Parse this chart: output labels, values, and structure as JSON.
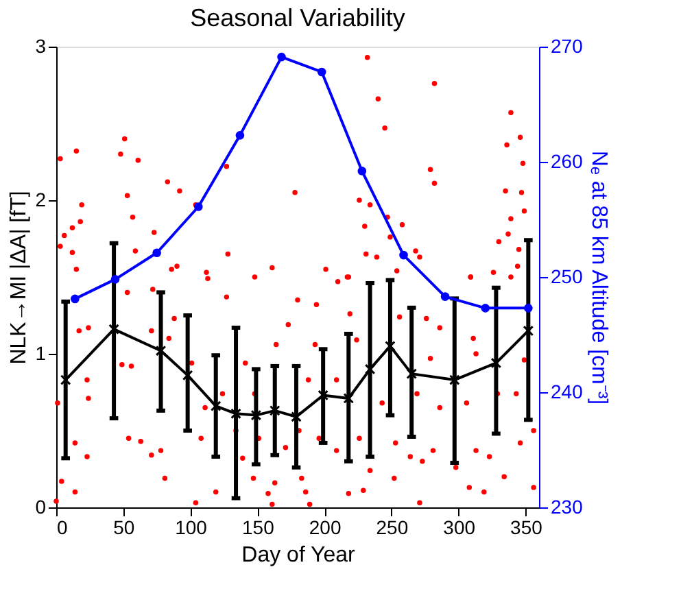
{
  "chart_data": {
    "type": "scatter",
    "title": "Seasonal Variability",
    "xlabel": "Day of Year",
    "ylabel": "NLK→MI |ΔA| [fT]",
    "y2label": "Nₑ at 85 km Altitude [cm⁻³]",
    "xlim": [
      0,
      360
    ],
    "xticks": [
      0,
      50,
      100,
      150,
      200,
      250,
      300,
      350
    ],
    "ylim": [
      0,
      3
    ],
    "yticks": [
      0,
      1,
      2,
      3
    ],
    "y2lim": [
      230,
      270
    ],
    "y2ticks": [
      230,
      240,
      250,
      260,
      270
    ],
    "grid": false,
    "series": [
      {
        "color": "#ff0000",
        "marker": "circle",
        "x": [
          3,
          15,
          51,
          48,
          61,
          127,
          83,
          92,
          53,
          19,
          57,
          6,
          12,
          18,
          73,
          3,
          12,
          59,
          128,
          15,
          86,
          90,
          112,
          161,
          178,
          104,
          232,
          282,
          240,
          245,
          339,
          346,
          336,
          348,
          279,
          282,
          226,
          234,
          335,
          347,
          349,
          339,
          258,
          230,
          247,
          330,
          337,
          249,
          231,
          239,
          268,
          271,
          345,
          344,
          201,
          217,
          309,
          326,
          113,
          148,
          127,
          53,
          72,
          24,
          17,
          49,
          56,
          23,
          1,
          24,
          54,
          63,
          71,
          78,
          14,
          23,
          4,
          14,
          0,
          81,
          104,
          119,
          158,
          163,
          161,
          147,
          139,
          171,
          108,
          111,
          101,
          141,
          164,
          173,
          124,
          148,
          134,
          151,
          84,
          71,
          88,
          180,
          210,
          218,
          254,
          309,
          339,
          194,
          219,
          256,
          276,
          286,
          311,
          349,
          193,
          224,
          279,
          313,
          329,
          343,
          286,
          306,
          188,
          209,
          243,
          269,
          181,
          196,
          209,
          226,
          253,
          273,
          281,
          313,
          346,
          356,
          323,
          183,
          186,
          189,
          218,
          229,
          252,
          271,
          308,
          319,
          334,
          356,
          298,
          264,
          234
        ],
        "values": [
          2.27,
          2.32,
          2.4,
          2.3,
          2.26,
          2.22,
          2.12,
          2.06,
          2.03,
          1.97,
          1.89,
          1.77,
          1.82,
          1.86,
          1.79,
          1.7,
          1.66,
          1.67,
          1.65,
          1.55,
          1.55,
          1.57,
          1.53,
          1.56,
          2.05,
          1.97,
          2.93,
          2.76,
          2.66,
          2.47,
          2.57,
          2.41,
          2.36,
          2.24,
          2.2,
          2.11,
          2.0,
          1.97,
          2.06,
          2.05,
          1.93,
          1.88,
          1.84,
          1.83,
          1.89,
          1.73,
          1.78,
          1.76,
          1.65,
          1.63,
          1.67,
          1.63,
          1.68,
          1.57,
          1.55,
          1.5,
          1.5,
          1.53,
          1.49,
          1.5,
          1.37,
          1.4,
          1.42,
          1.17,
          1.15,
          0.93,
          0.92,
          0.83,
          0.68,
          0.71,
          0.45,
          0.43,
          0.34,
          0.37,
          0.42,
          0.33,
          0.17,
          0.1,
          0.04,
          0.19,
          0.03,
          0.1,
          0.09,
          0.16,
          0.02,
          0.19,
          0.32,
          0.39,
          0.45,
          0.65,
          0.94,
          0.94,
          1.06,
          1.19,
          0.74,
          0.74,
          0.5,
          0.45,
          1.1,
          1.15,
          1.23,
          1.35,
          1.47,
          1.5,
          1.54,
          1.5,
          1.5,
          1.32,
          1.26,
          1.24,
          1.23,
          1.17,
          1.1,
          0.96,
          1.06,
          1.09,
          0.97,
          1.0,
          0.74,
          0.74,
          0.65,
          0.68,
          0.83,
          0.83,
          0.68,
          0.74,
          0.5,
          0.45,
          0.37,
          0.45,
          0.42,
          0.3,
          0.37,
          0.37,
          0.42,
          0.5,
          0.33,
          0.19,
          0.1,
          0.02,
          0.09,
          0.11,
          0.19,
          0.03,
          0.13,
          0.1,
          0.2,
          0.13,
          0.26,
          0.33,
          0.24
        ]
      },
      {
        "type": "line",
        "color": "#000000",
        "marker": "cross",
        "line_style": "solid",
        "x": [
          7,
          43,
          78,
          98,
          119,
          134,
          149,
          163,
          179,
          199,
          218,
          234,
          249,
          265,
          297,
          328,
          352
        ],
        "values": [
          0.83,
          1.16,
          1.02,
          0.86,
          0.66,
          0.61,
          0.6,
          0.63,
          0.59,
          0.73,
          0.71,
          0.9,
          1.05,
          0.87,
          0.83,
          0.94,
          1.15
        ],
        "errors": [
          [
            0.32,
            1.34
          ],
          [
            0.58,
            1.72
          ],
          [
            0.63,
            1.4
          ],
          [
            0.5,
            1.25
          ],
          [
            0.33,
            0.99
          ],
          [
            0.06,
            1.17
          ],
          [
            0.28,
            0.9
          ],
          [
            0.34,
            0.92
          ],
          [
            0.26,
            0.92
          ],
          [
            0.42,
            1.03
          ],
          [
            0.3,
            1.13
          ],
          [
            0.33,
            1.46
          ],
          [
            0.6,
            1.48
          ],
          [
            0.46,
            1.3
          ],
          [
            0.29,
            1.36
          ],
          [
            0.48,
            1.43
          ],
          [
            0.57,
            1.74
          ]
        ]
      },
      {
        "type": "line",
        "color": "#0000ff",
        "marker": "circle",
        "line_style": "solid",
        "axis": "y2",
        "x": [
          14,
          44,
          75,
          106,
          137,
          168,
          198,
          228,
          259,
          290,
          320,
          352
        ],
        "values": [
          248.1,
          249.8,
          252.1,
          256.1,
          262.3,
          269.1,
          267.8,
          259.2,
          251.9,
          248.3,
          247.3,
          247.3
        ]
      }
    ]
  }
}
